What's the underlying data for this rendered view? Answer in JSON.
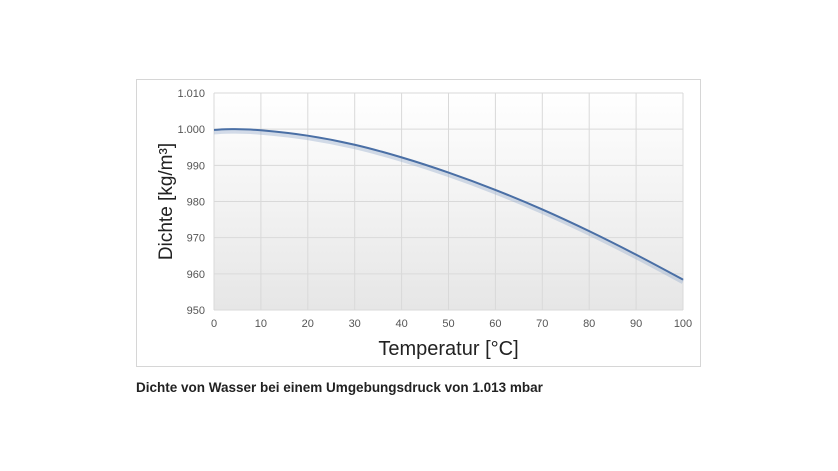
{
  "caption": "Dichte von Wasser bei einem Umgebungsdruck von 1.013 mbar",
  "chart_data": {
    "type": "line",
    "title": "",
    "xlabel": "Temperatur [°C]",
    "ylabel": "Dichte [kg/m³]",
    "xlim": [
      0,
      100
    ],
    "ylim": [
      950,
      1010
    ],
    "x_ticks": [
      "0",
      "10",
      "20",
      "30",
      "40",
      "50",
      "60",
      "70",
      "80",
      "90",
      "100"
    ],
    "y_ticks": [
      "950",
      "960",
      "970",
      "980",
      "990",
      "1.000",
      "1.010"
    ],
    "grid": true,
    "legend": "none",
    "series": [
      {
        "color": "#4a6fa5",
        "x": [
          0,
          4,
          10,
          20,
          30,
          40,
          50,
          60,
          70,
          80,
          90,
          100
        ],
        "y": [
          999.8,
          1000.0,
          999.7,
          998.2,
          995.7,
          992.2,
          988.0,
          983.2,
          977.8,
          971.8,
          965.3,
          958.4
        ]
      }
    ]
  }
}
